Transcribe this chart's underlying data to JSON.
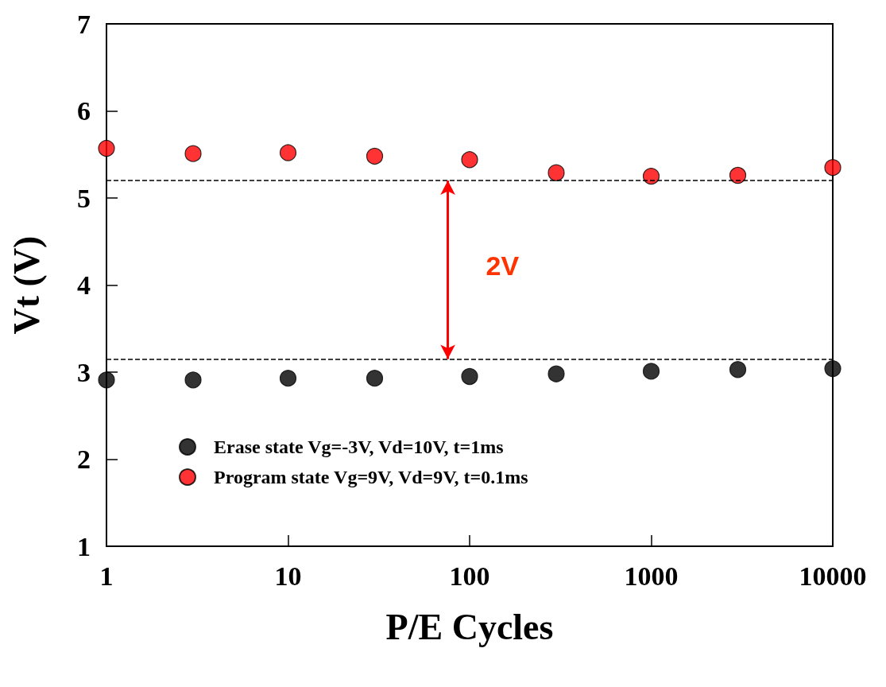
{
  "chart_data": {
    "type": "scatter",
    "xlabel": "P/E Cycles",
    "ylabel": "Vt (V)",
    "log": "x",
    "x": [
      1,
      3,
      10,
      30,
      100,
      300,
      1000,
      3000,
      10000
    ],
    "series": [
      {
        "name": "Erase state Vg=-3V, Vd=10V, t=1ms",
        "color": "#000000",
        "values": [
          2.91,
          2.91,
          2.93,
          2.93,
          2.95,
          2.98,
          3.01,
          3.03,
          3.04
        ]
      },
      {
        "name": "Program state Vg=9V, Vd=9V, t=0.1ms",
        "color": "#ff0000",
        "values": [
          5.57,
          5.51,
          5.52,
          5.48,
          5.44,
          5.29,
          5.25,
          5.26,
          5.35
        ]
      }
    ],
    "xlim": [
      1,
      10000
    ],
    "xticks": [
      1,
      10,
      100,
      1000,
      10000
    ],
    "ylim": [
      1,
      7
    ],
    "yticks": [
      1,
      2,
      3,
      4,
      5,
      6,
      7
    ],
    "ref_lines": [
      {
        "axis": "y",
        "value": 5.2,
        "color": "#000000",
        "line_style": "dashed"
      },
      {
        "axis": "y",
        "value": 3.15,
        "color": "#000000",
        "line_style": "dashed"
      }
    ],
    "annotations": [
      "2V"
    ],
    "marker": "circle",
    "grid": false,
    "legend": "bottom left"
  }
}
